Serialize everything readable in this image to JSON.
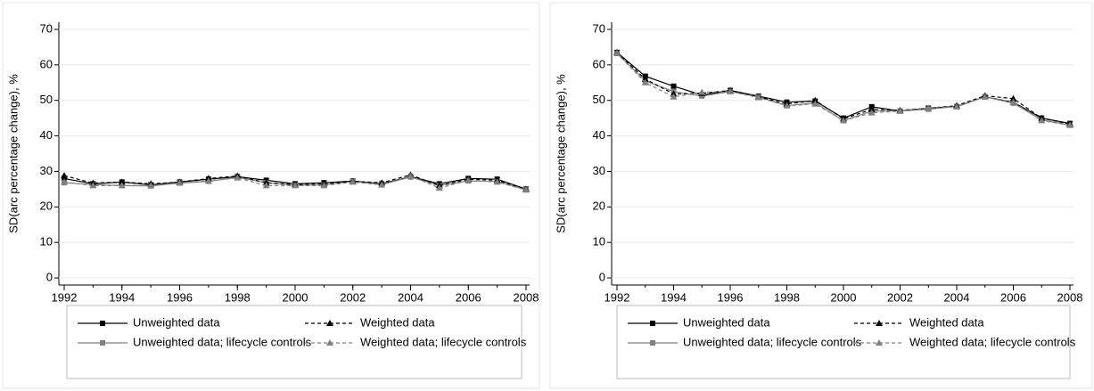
{
  "chart_data": [
    {
      "type": "line",
      "y_label": "SD(arc percentage change), %",
      "x": [
        1992,
        1993,
        1994,
        1995,
        1996,
        1997,
        1998,
        1999,
        2000,
        2001,
        2002,
        2003,
        2004,
        2005,
        2006,
        2007,
        2008
      ],
      "xlim": [
        1992,
        2008
      ],
      "xticks": [
        1992,
        1994,
        1996,
        1998,
        2000,
        2002,
        2004,
        2006,
        2008
      ],
      "ylim": [
        -2,
        72
      ],
      "yticks": [
        0,
        10,
        20,
        30,
        40,
        50,
        60,
        70
      ],
      "series": [
        {
          "name": "Unweighted data",
          "color": "#000000",
          "dash": false,
          "marker": "square",
          "values": [
            28,
            26.5,
            27,
            26.2,
            27,
            27.8,
            28.5,
            27.5,
            26.5,
            26.8,
            27.3,
            26.5,
            28.5,
            26.5,
            28,
            27.8,
            25
          ]
        },
        {
          "name": "Unweighted data; lifecycle controls",
          "color": "#808080",
          "dash": false,
          "marker": "square",
          "values": [
            26.8,
            26.3,
            26,
            25.9,
            26.7,
            27.2,
            28.3,
            26.8,
            26.1,
            26.2,
            27.2,
            26.3,
            28.4,
            26,
            27.3,
            27.2,
            24.8
          ]
        },
        {
          "name": "Weighted data",
          "color": "#000000",
          "dash": true,
          "marker": "triangle",
          "values": [
            28.8,
            26.7,
            27,
            26.5,
            27,
            28,
            28.7,
            26.8,
            26.3,
            26.5,
            27.2,
            26.8,
            29,
            26,
            27.8,
            27.5,
            25
          ]
        },
        {
          "name": "Weighted data; lifecycle controls",
          "color": "#808080",
          "dash": true,
          "marker": "triangle",
          "values": [
            27,
            26,
            26,
            26,
            26.8,
            27.3,
            28.2,
            26,
            26,
            26,
            27,
            26.2,
            28.7,
            25.3,
            27.5,
            27,
            24.8
          ]
        }
      ]
    },
    {
      "type": "line",
      "y_label": "SD(arc percentage change), %",
      "x": [
        1992,
        1993,
        1994,
        1995,
        1996,
        1997,
        1998,
        1999,
        2000,
        2001,
        2002,
        2003,
        2004,
        2005,
        2006,
        2007,
        2008
      ],
      "xlim": [
        1992,
        2008
      ],
      "xticks": [
        1992,
        1994,
        1996,
        1998,
        2000,
        2002,
        2004,
        2006,
        2008
      ],
      "ylim": [
        -2,
        72
      ],
      "yticks": [
        0,
        10,
        20,
        30,
        40,
        50,
        60,
        70
      ],
      "series": [
        {
          "name": "Unweighted data",
          "color": "#000000",
          "dash": false,
          "marker": "square",
          "values": [
            63.5,
            56.8,
            54,
            51.5,
            52.8,
            51.2,
            49.5,
            49.8,
            45,
            48.2,
            47,
            47.8,
            48.3,
            51,
            49.5,
            45,
            43.5
          ]
        },
        {
          "name": "Unweighted data; lifecycle controls",
          "color": "#808080",
          "dash": false,
          "marker": "square",
          "values": [
            63.2,
            55.5,
            52.5,
            51.2,
            52.5,
            51,
            48.5,
            49.3,
            44.3,
            47,
            47,
            47.5,
            48.3,
            51,
            49.2,
            44.5,
            43
          ]
        },
        {
          "name": "Weighted data",
          "color": "#000000",
          "dash": true,
          "marker": "triangle",
          "values": [
            63.5,
            56,
            51.8,
            52,
            52.8,
            51,
            49,
            50,
            44.8,
            47.5,
            47.2,
            47.8,
            48.5,
            51.3,
            50.5,
            45,
            43.3
          ]
        },
        {
          "name": "Weighted data; lifecycle controls",
          "color": "#808080",
          "dash": true,
          "marker": "triangle",
          "values": [
            63.3,
            55,
            51,
            52.3,
            52.5,
            50.8,
            48.5,
            49,
            44.3,
            46.5,
            47,
            47.8,
            48.2,
            51,
            49.5,
            44.3,
            43
          ]
        }
      ]
    }
  ]
}
